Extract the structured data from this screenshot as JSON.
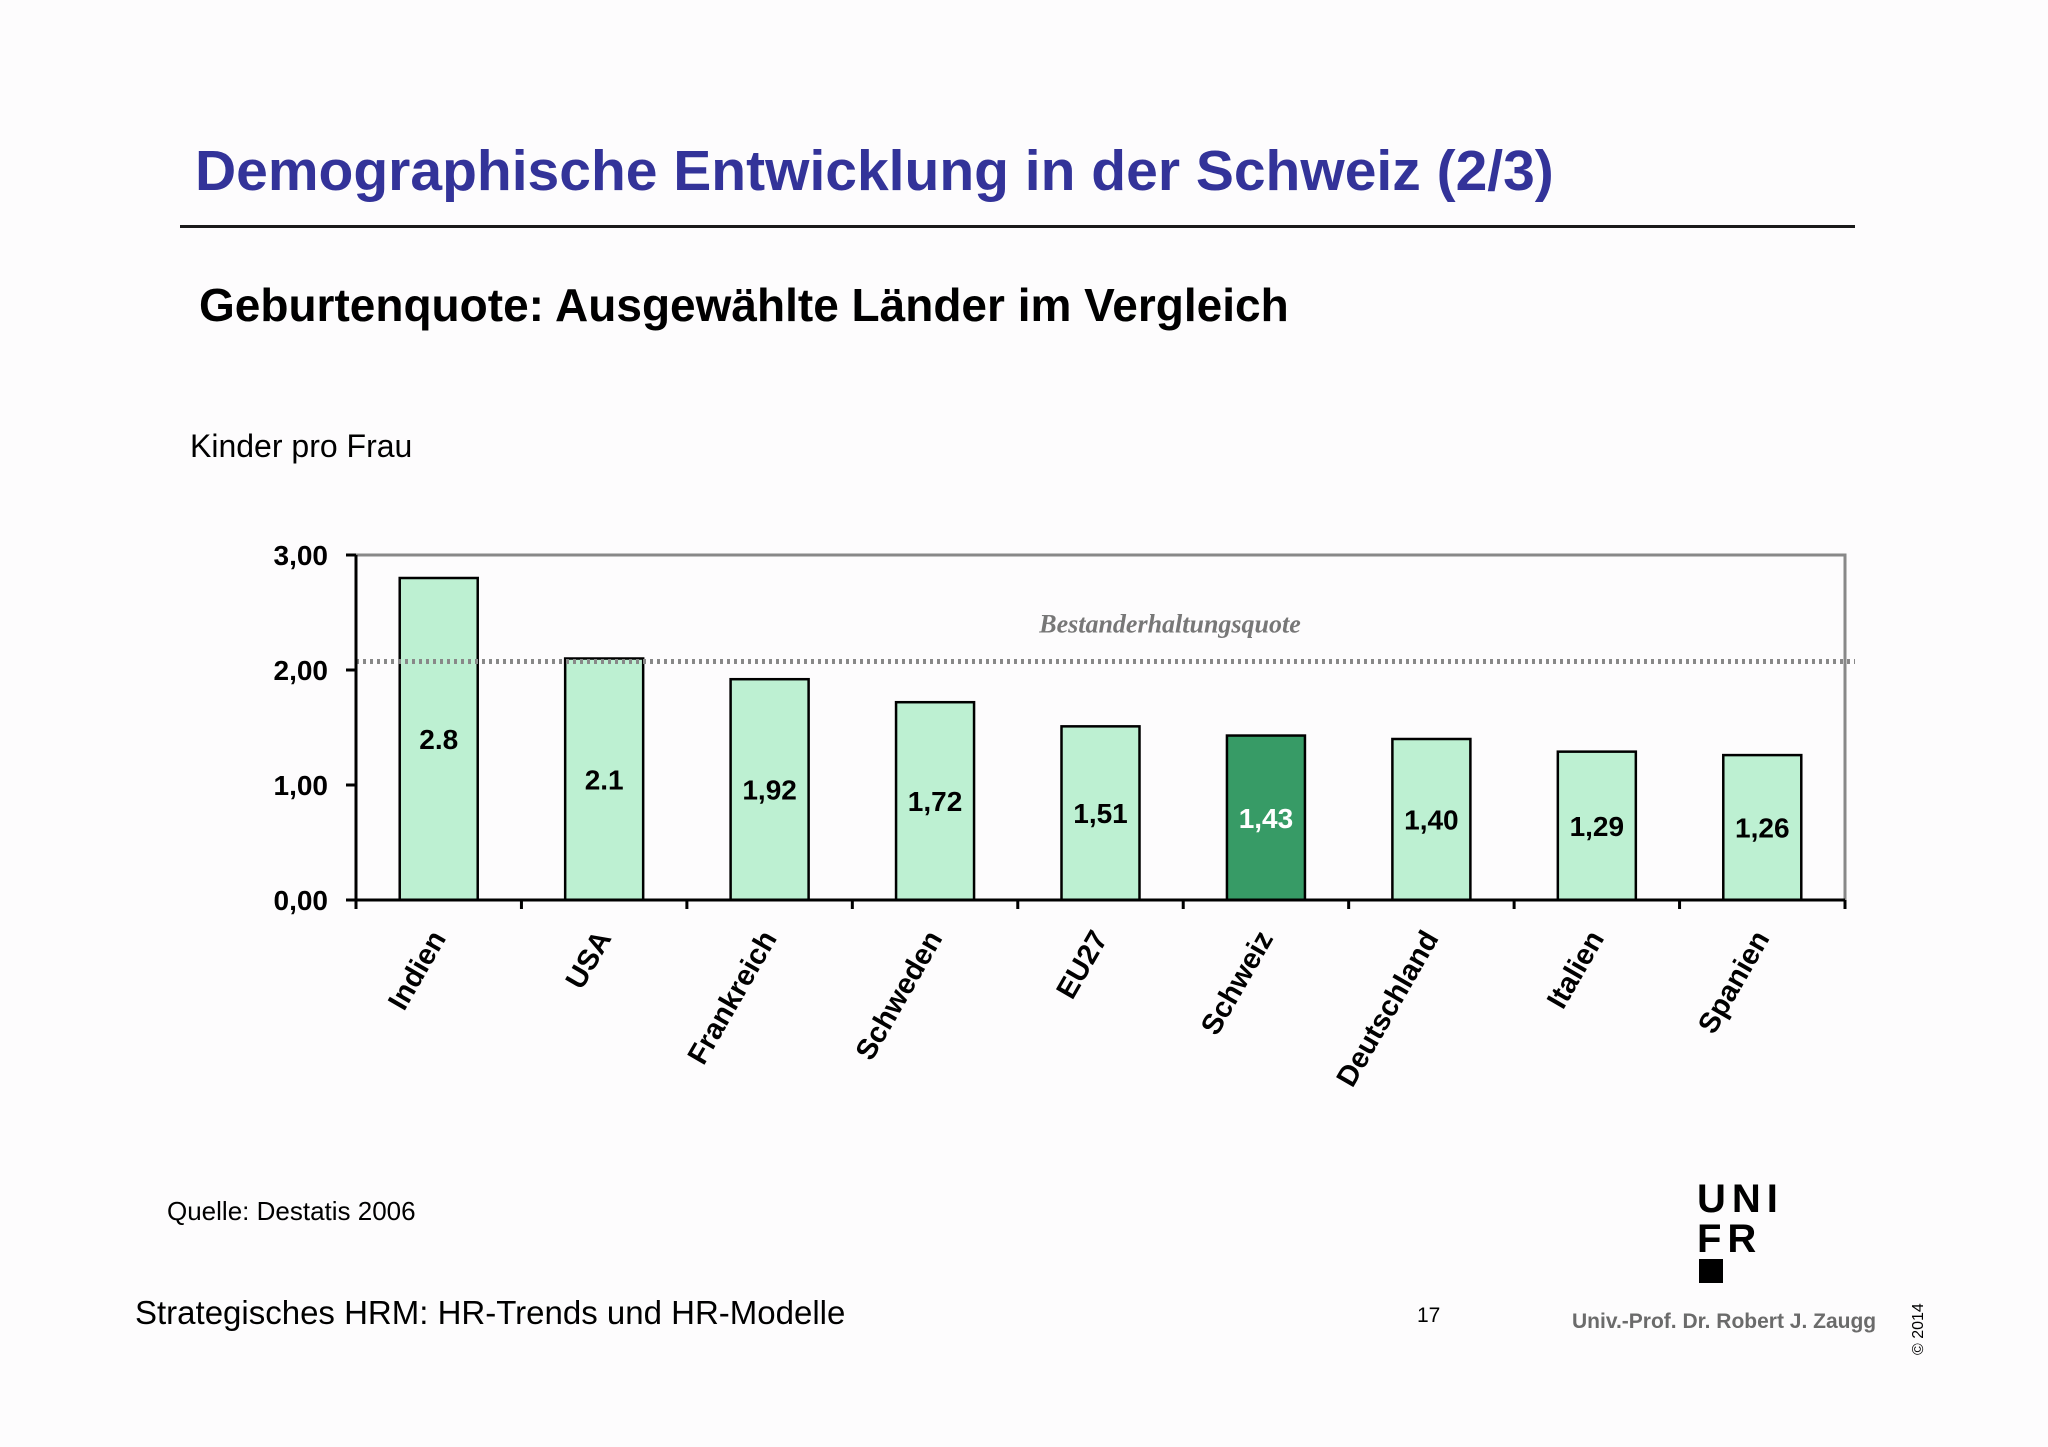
{
  "slide": {
    "title": "Demographische Entwicklung in der Schweiz (2/3)",
    "subtitle": "Geburtenquote: Ausgewählte Länder im Vergleich",
    "source": "Quelle: Destatis 2006",
    "footer_left": "Strategisches HRM: HR-Trends und HR-Modelle",
    "page_number": "17",
    "author": "Univ.-Prof. Dr. Robert J. Zaugg",
    "copyright": "© 2014",
    "logo": {
      "lines": [
        "UNI",
        "FR"
      ]
    }
  },
  "chart_data": {
    "type": "bar",
    "ylabel": "Kinder pro Frau",
    "ylim": [
      0,
      3
    ],
    "yticks": [
      "0,00",
      "1,00",
      "2,00",
      "3,00"
    ],
    "categories": [
      "Indien",
      "USA",
      "Frankreich",
      "Schweden",
      "EU27",
      "Schweiz",
      "Deutschland",
      "Italien",
      "Spanien"
    ],
    "values": [
      2.8,
      2.1,
      1.92,
      1.72,
      1.51,
      1.43,
      1.4,
      1.29,
      1.26
    ],
    "data_labels": [
      "2.8",
      "2.1",
      "1,92",
      "1,72",
      "1,51",
      "1,43",
      "1,40",
      "1,29",
      "1,26"
    ],
    "highlight": "Schweiz",
    "reference_line": {
      "label": "Bestanderhaltungsquote",
      "value": 2.1
    },
    "colors": {
      "bar": "#bdf0d2",
      "bar_highlight": "#379b66",
      "reference": "#888888"
    },
    "grid": false
  }
}
